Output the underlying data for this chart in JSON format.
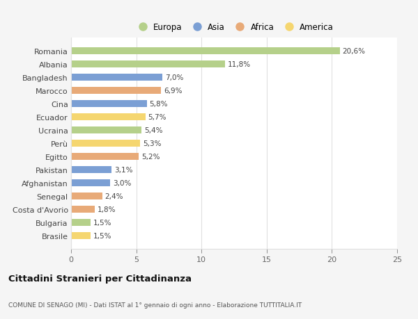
{
  "countries": [
    "Romania",
    "Albania",
    "Bangladesh",
    "Marocco",
    "Cina",
    "Ecuador",
    "Ucraina",
    "Perù",
    "Egitto",
    "Pakistan",
    "Afghanistan",
    "Senegal",
    "Costa d'Avorio",
    "Bulgaria",
    "Brasile"
  ],
  "values": [
    20.6,
    11.8,
    7.0,
    6.9,
    5.8,
    5.7,
    5.4,
    5.3,
    5.2,
    3.1,
    3.0,
    2.4,
    1.8,
    1.5,
    1.5
  ],
  "labels": [
    "20,6%",
    "11,8%",
    "7,0%",
    "6,9%",
    "5,8%",
    "5,7%",
    "5,4%",
    "5,3%",
    "5,2%",
    "3,1%",
    "3,0%",
    "2,4%",
    "1,8%",
    "1,5%",
    "1,5%"
  ],
  "continents": [
    "Europa",
    "Europa",
    "Asia",
    "Africa",
    "Asia",
    "America",
    "Europa",
    "America",
    "Africa",
    "Asia",
    "Asia",
    "Africa",
    "Africa",
    "Europa",
    "America"
  ],
  "colors": {
    "Europa": "#b5d08a",
    "Asia": "#7b9fd4",
    "Africa": "#e8aa78",
    "America": "#f5d670"
  },
  "legend_order": [
    "Europa",
    "Asia",
    "Africa",
    "America"
  ],
  "xlim": [
    0,
    25
  ],
  "xticks": [
    0,
    5,
    10,
    15,
    20,
    25
  ],
  "title": "Cittadini Stranieri per Cittadinanza",
  "subtitle": "COMUNE DI SENAGO (MI) - Dati ISTAT al 1° gennaio di ogni anno - Elaborazione TUTTITALIA.IT",
  "background_color": "#f5f5f5",
  "plot_bg_color": "#ffffff",
  "grid_color": "#e0e0e0",
  "label_color": "#444444",
  "tick_color": "#666666"
}
